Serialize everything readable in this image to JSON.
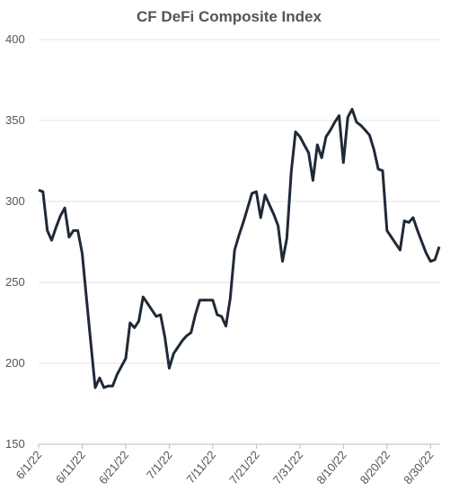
{
  "chart_data": {
    "type": "line",
    "title": "CF DeFi Composite Index",
    "x": [
      "6/1/22",
      "6/2/22",
      "6/3/22",
      "6/4/22",
      "6/5/22",
      "6/6/22",
      "6/7/22",
      "6/8/22",
      "6/9/22",
      "6/10/22",
      "6/11/22",
      "6/12/22",
      "6/13/22",
      "6/14/22",
      "6/15/22",
      "6/16/22",
      "6/17/22",
      "6/18/22",
      "6/19/22",
      "6/20/22",
      "6/21/22",
      "6/22/22",
      "6/23/22",
      "6/24/22",
      "6/25/22",
      "6/26/22",
      "6/27/22",
      "6/28/22",
      "6/29/22",
      "6/30/22",
      "7/1/22",
      "7/2/22",
      "7/3/22",
      "7/4/22",
      "7/5/22",
      "7/6/22",
      "7/7/22",
      "7/8/22",
      "7/9/22",
      "7/10/22",
      "7/11/22",
      "7/12/22",
      "7/13/22",
      "7/14/22",
      "7/15/22",
      "7/16/22",
      "7/17/22",
      "7/18/22",
      "7/19/22",
      "7/20/22",
      "7/21/22",
      "7/22/22",
      "7/23/22",
      "7/24/22",
      "7/25/22",
      "7/26/22",
      "7/27/22",
      "7/28/22",
      "7/29/22",
      "7/30/22",
      "7/31/22",
      "8/1/22",
      "8/2/22",
      "8/3/22",
      "8/4/22",
      "8/5/22",
      "8/6/22",
      "8/7/22",
      "8/8/22",
      "8/9/22",
      "8/10/22",
      "8/11/22",
      "8/12/22",
      "8/13/22",
      "8/14/22",
      "8/15/22",
      "8/16/22",
      "8/17/22",
      "8/18/22",
      "8/19/22",
      "8/20/22",
      "8/21/22",
      "8/22/22",
      "8/23/22",
      "8/24/22",
      "8/25/22",
      "8/26/22",
      "8/27/22",
      "8/28/22",
      "8/29/22",
      "8/30/22",
      "8/31/22",
      "9/1/22"
    ],
    "series": [
      {
        "name": "CF DeFi Composite Index",
        "color": "#1f2937",
        "values": [
          307,
          306,
          282,
          276,
          284,
          291,
          296,
          278,
          282,
          282,
          268,
          240,
          212,
          185,
          191,
          185,
          186,
          186,
          193,
          198,
          203,
          225,
          222,
          226,
          241,
          237,
          233,
          229,
          230,
          216,
          197,
          206,
          210,
          214,
          217,
          219,
          230,
          239,
          239,
          239,
          239,
          230,
          229,
          223,
          240,
          270,
          279,
          287,
          296,
          305,
          306,
          290,
          304,
          298,
          292,
          285,
          263,
          277,
          318,
          343,
          340,
          335,
          330,
          313,
          335,
          327,
          340,
          344,
          349,
          353,
          324,
          352,
          357,
          349,
          347,
          344,
          341,
          332,
          320,
          319,
          282,
          278,
          274,
          270,
          288,
          287,
          290,
          282,
          275,
          268,
          263,
          264,
          272
        ]
      }
    ],
    "xticks": [
      "6/1/22",
      "6/11/22",
      "6/21/22",
      "7/1/22",
      "7/11/22",
      "7/21/22",
      "7/31/22",
      "8/10/22",
      "8/20/22",
      "8/30/22"
    ],
    "ylim": [
      150,
      400
    ],
    "yticks": [
      150,
      200,
      250,
      300,
      350,
      400
    ],
    "grid": true
  }
}
